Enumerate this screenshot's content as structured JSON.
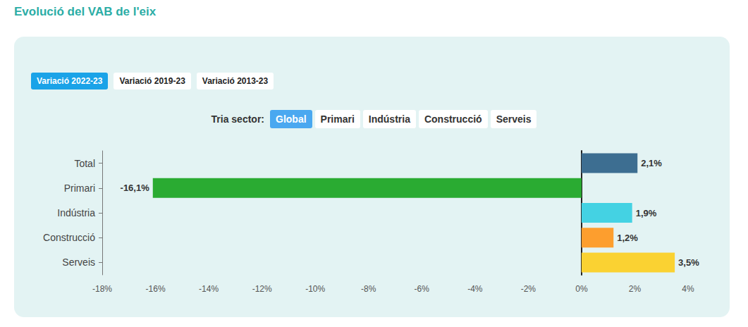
{
  "page": {
    "title": "Evolució del VAB de l'eix",
    "tabs": [
      "Variació 2022-23",
      "Variació 2019-23",
      "Variació 2013-23"
    ],
    "tabs_selected": "Variació 2022-23",
    "sector_label": "Tria sector:",
    "sectors": [
      "Global",
      "Primari",
      "Indústria",
      "Construcció",
      "Serveis"
    ],
    "sectors_selected": "Global"
  },
  "chart_data": {
    "type": "bar",
    "orientation": "horizontal",
    "categories": [
      "Total",
      "Primari",
      "Indústria",
      "Construcció",
      "Serveis"
    ],
    "values": [
      2.1,
      -16.1,
      1.9,
      1.2,
      3.5
    ],
    "value_labels": [
      "2,1%",
      "-16,1%",
      "1,9%",
      "1,2%",
      "3,5%"
    ],
    "colors": [
      "#3d6e91",
      "#2aab32",
      "#44d2e3",
      "#fd9e2e",
      "#fad232"
    ],
    "xlim": [
      -18,
      4
    ],
    "xticks": [
      {
        "value": -18,
        "label": "-18%"
      },
      {
        "value": -16,
        "label": "-16%"
      },
      {
        "value": -14,
        "label": "-14%"
      },
      {
        "value": -12,
        "label": "-12%"
      },
      {
        "value": -10,
        "label": "-10%"
      },
      {
        "value": -8,
        "label": "-8%"
      },
      {
        "value": -6,
        "label": "-6%"
      },
      {
        "value": -4,
        "label": "-4%"
      },
      {
        "value": -2,
        "label": "-2%"
      },
      {
        "value": 0,
        "label": "0%"
      },
      {
        "value": 2,
        "label": "2%"
      },
      {
        "value": 4,
        "label": "4%"
      }
    ],
    "grid": false,
    "data_labels": true
  }
}
